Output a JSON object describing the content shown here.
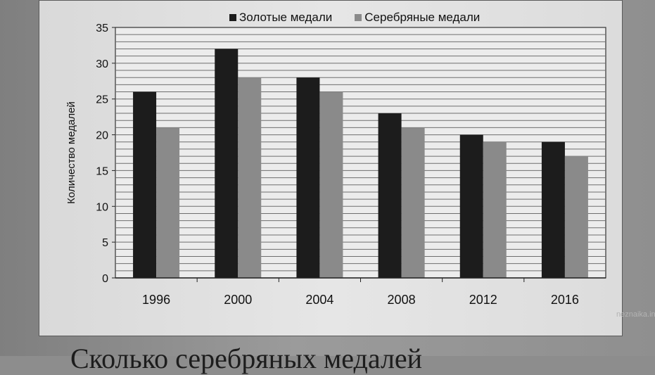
{
  "chart_data": {
    "type": "bar",
    "categories": [
      "1996",
      "2000",
      "2004",
      "2008",
      "2012",
      "2016"
    ],
    "series": [
      {
        "name": "Золотые медали",
        "color": "#1c1c1c",
        "values": [
          26,
          32,
          28,
          23,
          20,
          19
        ]
      },
      {
        "name": "Серебряные медали",
        "color": "#8a8a8a",
        "values": [
          21,
          28,
          26,
          21,
          19,
          17
        ]
      }
    ],
    "ylabel": "Количество медалей",
    "xlabel": "",
    "ylim": [
      0,
      35
    ],
    "yticks": [
      0,
      5,
      10,
      15,
      20,
      25,
      30,
      35
    ],
    "grid": true,
    "legend_position": "top"
  },
  "watermark": "neznaika.info",
  "bottom_text": "Сколько серебряных медалей"
}
